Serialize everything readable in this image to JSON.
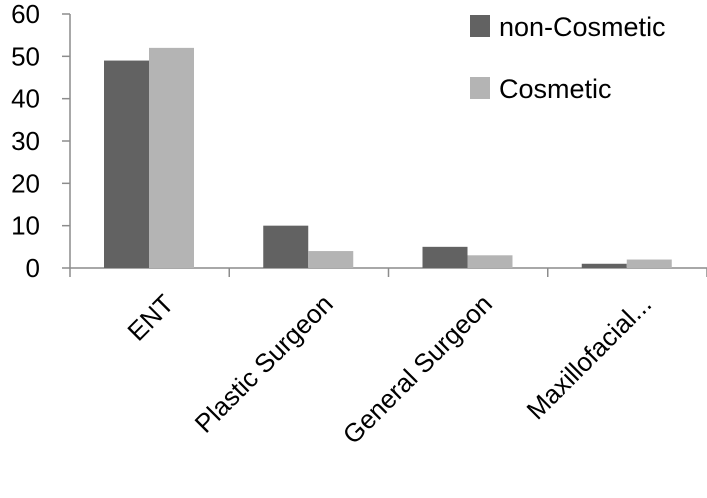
{
  "chart_data": {
    "type": "bar",
    "title": "",
    "xlabel": "",
    "ylabel": "",
    "categories": [
      "ENT",
      "Plastic Surgeon",
      "General Surgeon",
      "Maxillofacial..."
    ],
    "series": [
      {
        "name": "non-Cosmetic",
        "values": [
          49,
          10,
          5,
          1
        ],
        "color": "#626262"
      },
      {
        "name": "Cosmetic",
        "values": [
          52,
          4,
          3,
          2
        ],
        "color": "#b4b4b4"
      }
    ],
    "ylim": [
      0,
      60
    ],
    "yticks": [
      0,
      10,
      20,
      30,
      40,
      50,
      60
    ],
    "grid": false,
    "legend_position": "top-right",
    "axis_color": "#8c8c8c"
  }
}
